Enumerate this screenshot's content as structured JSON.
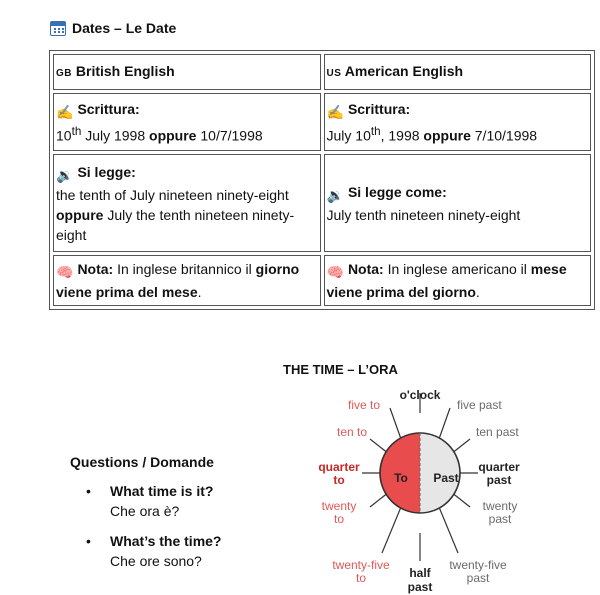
{
  "heading": {
    "title": "Dates – Le Date"
  },
  "table": {
    "british": {
      "flag": "GB",
      "header": "British English",
      "write_label": "Scrittura:",
      "write_day": "10",
      "write_sup": "th",
      "write_rest": " July 1998 ",
      "write_or": "oppure",
      "write_alt": " 10/7/1998",
      "read_label": "Si legge:",
      "read_line1": "the tenth of July nineteen ninety-eight",
      "read_or": "oppure",
      "read_line2": " July the tenth nineteen ninety-eight",
      "note_label": "Nota:",
      "note_text": " In inglese britannico il ",
      "note_bold": "giorno viene prima del mese",
      "note_end": "."
    },
    "american": {
      "flag": "US",
      "header": "American English",
      "write_label": "Scrittura:",
      "write_pre": "July 10",
      "write_sup": "th",
      "write_rest": ", 1998 ",
      "write_or": "oppure",
      "write_alt": " 7/10/1998",
      "read_label": "Si legge come:",
      "read_line1": "July tenth nineteen ninety-eight",
      "note_label": "Nota:",
      "note_text": " In inglese americano il ",
      "note_bold": "mese viene prima del giorno",
      "note_end": "."
    },
    "emojis": {
      "write": "✍️",
      "read": "🔉",
      "note": "🧠"
    }
  },
  "time": {
    "title": "THE TIME – L’ORA",
    "questions_title": "Questions / Domande",
    "questions": [
      {
        "en": "What time is it?",
        "it": "Che ora è?"
      },
      {
        "en": "What’s the time?",
        "it": "Che ore sono?"
      }
    ],
    "clock": {
      "oclock": "o'clock",
      "half": "half",
      "past": "past",
      "to_side": "To",
      "past_side": "Past",
      "left_labels": [
        {
          "a": "five to"
        },
        {
          "a": "ten to"
        },
        {
          "a": "quarter",
          "b": "to"
        },
        {
          "a": "twenty",
          "b": "to"
        },
        {
          "a": "twenty-five",
          "b": "to"
        }
      ],
      "right_labels": [
        {
          "a": "five past"
        },
        {
          "a": "ten past"
        },
        {
          "a": "quarter",
          "b": "past"
        },
        {
          "a": "twenty",
          "b": "past"
        },
        {
          "a": "twenty-five",
          "b": "past"
        }
      ],
      "colors": {
        "to_fill": "#e84c4c",
        "past_fill": "#e6e6e6",
        "to_text": "#e05858",
        "past_text": "#6b6b6b"
      }
    }
  }
}
